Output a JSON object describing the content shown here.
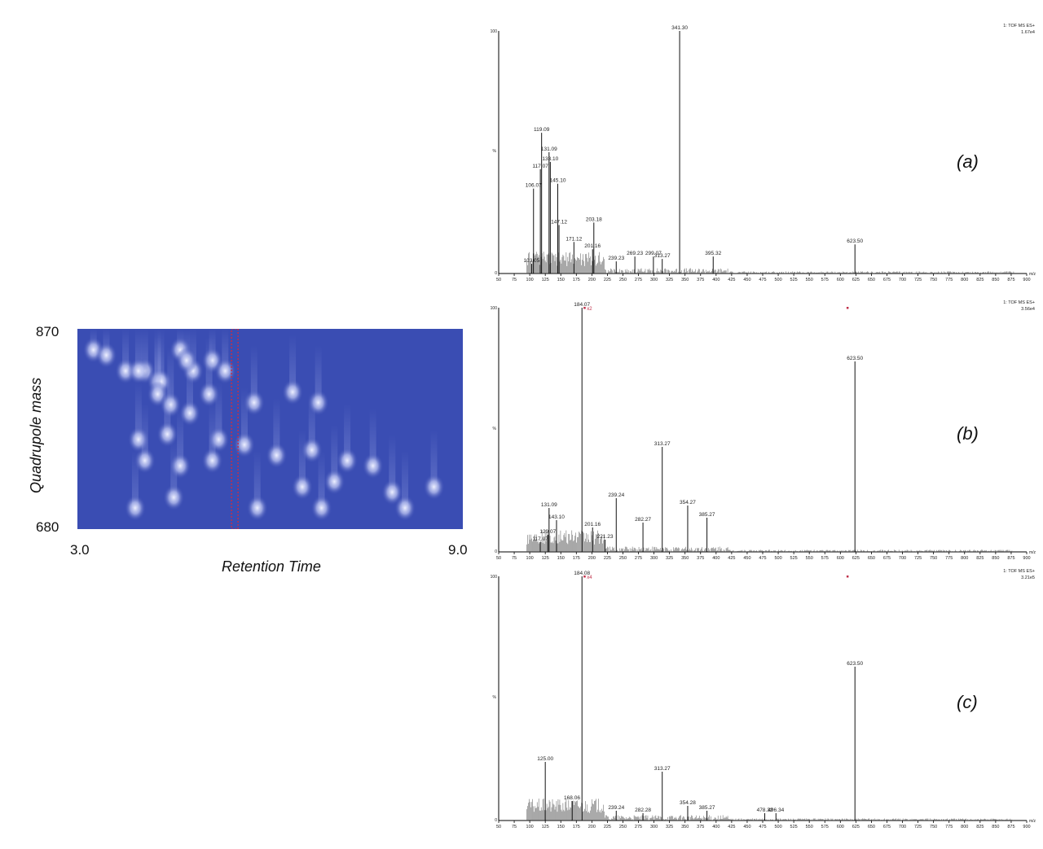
{
  "heatmap": {
    "ylabel": "Quadrupole mass",
    "xlabel": "Retention Time",
    "y_ticks": [
      "870",
      "680"
    ],
    "x_ticks": [
      "3.0",
      "9.0"
    ],
    "xlim": [
      3.0,
      9.0
    ],
    "ylim": [
      680,
      870
    ],
    "colors": {
      "background": "#3a4db3",
      "spot": "#eef0ff",
      "highlight": "#c0304a"
    },
    "highlight_rt": 5.45,
    "spots": [
      {
        "rt": 3.25,
        "mass": 850
      },
      {
        "rt": 3.45,
        "mass": 845
      },
      {
        "rt": 3.75,
        "mass": 830
      },
      {
        "rt": 4.05,
        "mass": 830
      },
      {
        "rt": 4.25,
        "mass": 820
      },
      {
        "rt": 4.6,
        "mass": 850
      },
      {
        "rt": 4.8,
        "mass": 830
      },
      {
        "rt": 5.1,
        "mass": 840
      },
      {
        "rt": 4.3,
        "mass": 820
      },
      {
        "rt": 3.95,
        "mass": 830
      },
      {
        "rt": 4.7,
        "mass": 840
      },
      {
        "rt": 5.3,
        "mass": 830
      },
      {
        "rt": 4.25,
        "mass": 808
      },
      {
        "rt": 4.45,
        "mass": 798
      },
      {
        "rt": 4.75,
        "mass": 790
      },
      {
        "rt": 5.05,
        "mass": 808
      },
      {
        "rt": 4.4,
        "mass": 770
      },
      {
        "rt": 5.2,
        "mass": 765
      },
      {
        "rt": 5.75,
        "mass": 800
      },
      {
        "rt": 6.35,
        "mass": 810
      },
      {
        "rt": 6.75,
        "mass": 800
      },
      {
        "rt": 3.95,
        "mass": 765
      },
      {
        "rt": 4.05,
        "mass": 745
      },
      {
        "rt": 4.6,
        "mass": 740
      },
      {
        "rt": 5.1,
        "mass": 745
      },
      {
        "rt": 5.6,
        "mass": 760
      },
      {
        "rt": 6.1,
        "mass": 750
      },
      {
        "rt": 6.65,
        "mass": 755
      },
      {
        "rt": 7.2,
        "mass": 745
      },
      {
        "rt": 7.6,
        "mass": 740
      },
      {
        "rt": 6.5,
        "mass": 720
      },
      {
        "rt": 7.0,
        "mass": 725
      },
      {
        "rt": 3.9,
        "mass": 700
      },
      {
        "rt": 4.5,
        "mass": 710
      },
      {
        "rt": 5.8,
        "mass": 700
      },
      {
        "rt": 6.8,
        "mass": 700
      },
      {
        "rt": 7.9,
        "mass": 715
      },
      {
        "rt": 8.55,
        "mass": 720
      },
      {
        "rt": 8.1,
        "mass": 700
      }
    ]
  },
  "panels": {
    "a": {
      "label": "(a)"
    },
    "b": {
      "label": "(b)"
    },
    "c": {
      "label": "(c)"
    }
  },
  "chart_data": [
    {
      "type": "bar",
      "label": "(a)",
      "header": [
        "1: TOF MS ES+",
        "1.67e4"
      ],
      "ylabel": "%",
      "xlabel": "m/z",
      "xlim": [
        50,
        900
      ],
      "ylim": [
        0,
        100
      ],
      "x_ticks": [
        50,
        75,
        100,
        125,
        150,
        175,
        200,
        225,
        250,
        275,
        300,
        325,
        350,
        375,
        400,
        425,
        450,
        475,
        500,
        525,
        550,
        575,
        600,
        625,
        650,
        675,
        700,
        725,
        750,
        775,
        800,
        825,
        850,
        875,
        900
      ],
      "peaks": [
        {
          "mz": 103.05,
          "y": 4,
          "label": "103.05"
        },
        {
          "mz": 106.07,
          "y": 35,
          "label": "106.07"
        },
        {
          "mz": 117.07,
          "y": 43,
          "label": "117.07"
        },
        {
          "mz": 119.09,
          "y": 58,
          "label": "119.09"
        },
        {
          "mz": 131.09,
          "y": 50,
          "label": "131.09"
        },
        {
          "mz": 133.1,
          "y": 46,
          "label": "133.10"
        },
        {
          "mz": 145.1,
          "y": 37,
          "label": "145.10"
        },
        {
          "mz": 147.12,
          "y": 20,
          "label": "147.12"
        },
        {
          "mz": 171.12,
          "y": 13,
          "label": "171.12"
        },
        {
          "mz": 201.16,
          "y": 10,
          "label": "201.16"
        },
        {
          "mz": 203.18,
          "y": 21,
          "label": "203.18"
        },
        {
          "mz": 239.23,
          "y": 5,
          "label": "239.23"
        },
        {
          "mz": 269.23,
          "y": 7,
          "label": "269.23"
        },
        {
          "mz": 299.07,
          "y": 7,
          "label": "299.07"
        },
        {
          "mz": 313.27,
          "y": 6,
          "label": "313.27"
        },
        {
          "mz": 341.3,
          "y": 100,
          "label": "341.30"
        },
        {
          "mz": 395.32,
          "y": 7,
          "label": "395.32"
        },
        {
          "mz": 623.5,
          "y": 12,
          "label": "623.50"
        }
      ]
    },
    {
      "type": "bar",
      "label": "(b)",
      "header": [
        "1: TOF MS ES+",
        "3.56e4"
      ],
      "ylabel": "%",
      "xlabel": "m/z",
      "xlim": [
        50,
        900
      ],
      "ylim": [
        0,
        100
      ],
      "magnification": "x2",
      "x_ticks": [
        50,
        75,
        100,
        125,
        150,
        175,
        200,
        225,
        250,
        275,
        300,
        325,
        350,
        375,
        400,
        425,
        450,
        475,
        500,
        525,
        550,
        575,
        600,
        625,
        650,
        675,
        700,
        725,
        750,
        775,
        800,
        825,
        850,
        875,
        900
      ],
      "peaks": [
        {
          "mz": 117.07,
          "y": 4,
          "label": "117.07"
        },
        {
          "mz": 129.07,
          "y": 7,
          "label": "129.07"
        },
        {
          "mz": 131.09,
          "y": 18,
          "label": "131.09"
        },
        {
          "mz": 143.1,
          "y": 13,
          "label": "143.10"
        },
        {
          "mz": 184.07,
          "y": 100,
          "label": "184.07"
        },
        {
          "mz": 201.16,
          "y": 10,
          "label": "201.16"
        },
        {
          "mz": 221.23,
          "y": 5,
          "label": "221.23"
        },
        {
          "mz": 239.24,
          "y": 22,
          "label": "239.24"
        },
        {
          "mz": 282.27,
          "y": 12,
          "label": "282.27"
        },
        {
          "mz": 313.27,
          "y": 43,
          "label": "313.27"
        },
        {
          "mz": 354.27,
          "y": 19,
          "label": "354.27"
        },
        {
          "mz": 385.27,
          "y": 14,
          "label": "385.27"
        },
        {
          "mz": 623.5,
          "y": 78,
          "label": "623.50"
        }
      ]
    },
    {
      "type": "bar",
      "label": "(c)",
      "header": [
        "1: TOF MS ES+",
        "3.21e5"
      ],
      "ylabel": "%",
      "xlabel": "m/z",
      "xlim": [
        50,
        900
      ],
      "ylim": [
        0,
        100
      ],
      "magnification": "x4",
      "x_ticks": [
        50,
        75,
        100,
        125,
        150,
        175,
        200,
        225,
        250,
        275,
        300,
        325,
        350,
        375,
        400,
        425,
        450,
        475,
        500,
        525,
        550,
        575,
        600,
        625,
        650,
        675,
        700,
        725,
        750,
        775,
        800,
        825,
        850,
        875,
        900
      ],
      "peaks": [
        {
          "mz": 125.0,
          "y": 24,
          "label": "125.00"
        },
        {
          "mz": 168.06,
          "y": 8,
          "label": "168.06"
        },
        {
          "mz": 184.08,
          "y": 100,
          "label": "184.08"
        },
        {
          "mz": 239.24,
          "y": 4,
          "label": "239.24"
        },
        {
          "mz": 282.28,
          "y": 3,
          "label": "282.28"
        },
        {
          "mz": 313.27,
          "y": 20,
          "label": "313.27"
        },
        {
          "mz": 354.28,
          "y": 6,
          "label": "354.28"
        },
        {
          "mz": 385.27,
          "y": 4,
          "label": "385.27"
        },
        {
          "mz": 478.32,
          "y": 3,
          "label": "478.32"
        },
        {
          "mz": 496.34,
          "y": 3,
          "label": "496.34"
        },
        {
          "mz": 623.5,
          "y": 63,
          "label": "623.50"
        }
      ]
    }
  ]
}
